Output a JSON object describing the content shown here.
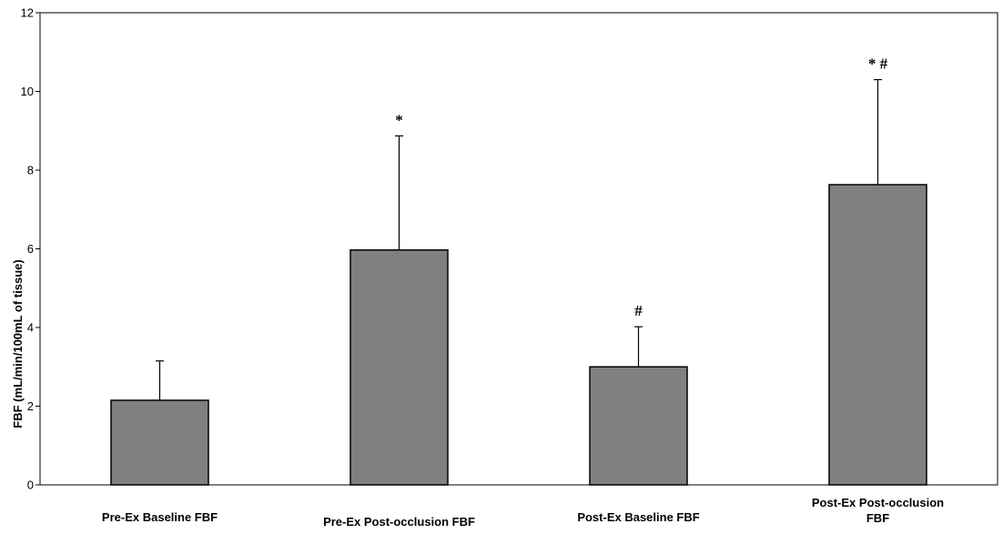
{
  "chart_data": {
    "type": "bar",
    "categories": [
      [
        "Pre-Ex Baseline FBF"
      ],
      [
        "Pre-Ex Post-occlusion FBF"
      ],
      [
        "Post-Ex Baseline FBF"
      ],
      [
        "Post-Ex Post-occlusion",
        "FBF"
      ]
    ],
    "values": [
      2.15,
      5.97,
      3.0,
      7.63
    ],
    "error_upper": [
      3.15,
      8.87,
      4.02,
      10.3
    ],
    "annotations": [
      "",
      "*",
      "#",
      "* #"
    ],
    "ylabel": "FBF (mL/min/100mL of tissue)",
    "yticks": [
      0,
      2,
      4,
      6,
      8,
      10,
      12
    ],
    "ylim": [
      0,
      12
    ],
    "bar_color": "#808080",
    "grid": false,
    "legend": "none"
  }
}
